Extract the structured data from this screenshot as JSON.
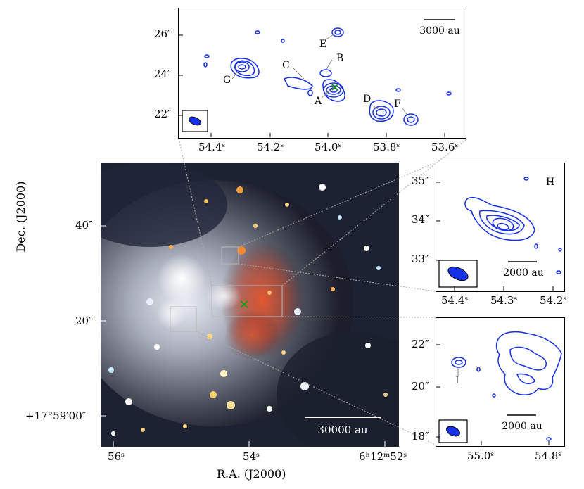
{
  "figure": {
    "x_label": "R.A. (J2000)",
    "y_label": "Dec. (J2000)",
    "colors": {
      "contour": "#1530e6",
      "marker": "#1d9b1d",
      "beam": "#1530e6"
    }
  },
  "main_panel": {
    "x_ticks": [
      "56ˢ",
      "54ˢ",
      "6ʰ12ᵐ52ˢ"
    ],
    "y_ticks": [
      "40″",
      "20″",
      "+17°59′00″"
    ],
    "scalebar": "30000 au",
    "marker": "×"
  },
  "top_panel": {
    "x_ticks": [
      "54.4ˢ",
      "54.2ˢ",
      "54.0ˢ",
      "53.8ˢ",
      "53.6ˢ"
    ],
    "y_ticks": [
      "26″",
      "24″",
      "22″"
    ],
    "scalebar": "3000 au",
    "source_labels": [
      "A",
      "B",
      "C",
      "D",
      "E",
      "F",
      "G"
    ]
  },
  "right_top_panel": {
    "x_ticks": [
      "54.4ˢ",
      "54.3ˢ",
      "54.2ˢ"
    ],
    "y_ticks": [
      "35″",
      "34″",
      "33″"
    ],
    "scalebar": "2000 au",
    "source_labels": [
      "H"
    ]
  },
  "right_bottom_panel": {
    "x_ticks": [
      "55.0ˢ",
      "54.8ˢ"
    ],
    "y_ticks": [
      "22″",
      "20″",
      "18″"
    ],
    "scalebar": "2000 au",
    "source_labels": [
      "I"
    ]
  }
}
